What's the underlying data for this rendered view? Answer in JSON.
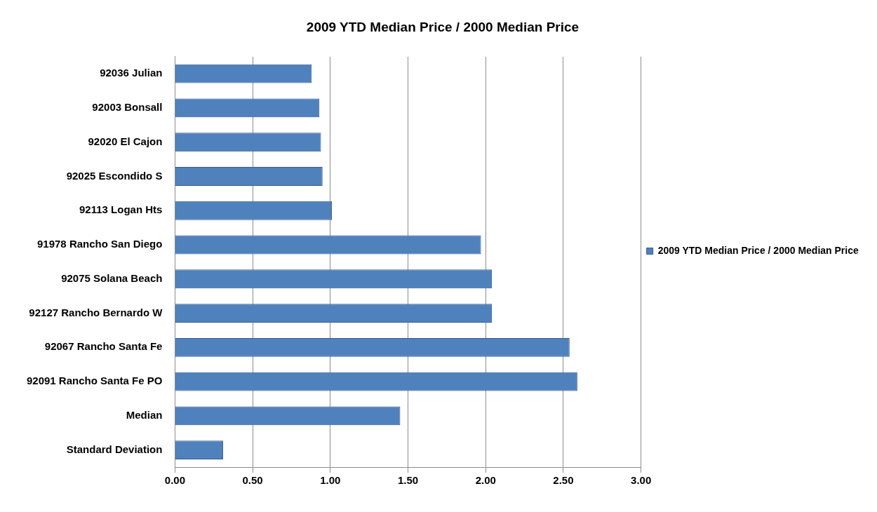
{
  "chart_data": {
    "type": "bar",
    "orientation": "horizontal",
    "title": "2009 YTD Median Price / 2000 Median Price",
    "categories": [
      "92036 Julian",
      "92003 Bonsall",
      "92020 El Cajon",
      "92025 Escondido S",
      "92113 Logan Hts",
      "91978 Rancho San Diego",
      "92075 Solana Beach",
      "92127 Rancho Bernardo W",
      "92067 Rancho Santa Fe",
      "92091 Rancho Santa Fe PO",
      "Median",
      "Standard Deviation"
    ],
    "series": [
      {
        "name": "2009 YTD Median Price / 2000 Median Price",
        "color": "#4f81bd",
        "values": [
          0.88,
          0.93,
          0.94,
          0.95,
          1.01,
          1.97,
          2.04,
          2.04,
          2.54,
          2.59,
          1.45,
          0.31
        ]
      }
    ],
    "xlim": [
      0,
      3
    ],
    "xticks": [
      {
        "value": 0,
        "label": "0.00"
      },
      {
        "value": 0.5,
        "label": "0.50"
      },
      {
        "value": 1,
        "label": "1.00"
      },
      {
        "value": 1.5,
        "label": "1.50"
      },
      {
        "value": 2,
        "label": "2.00"
      },
      {
        "value": 2.5,
        "label": "2.50"
      },
      {
        "value": 3,
        "label": "3.00"
      }
    ],
    "grid": "x",
    "legend": "right"
  }
}
